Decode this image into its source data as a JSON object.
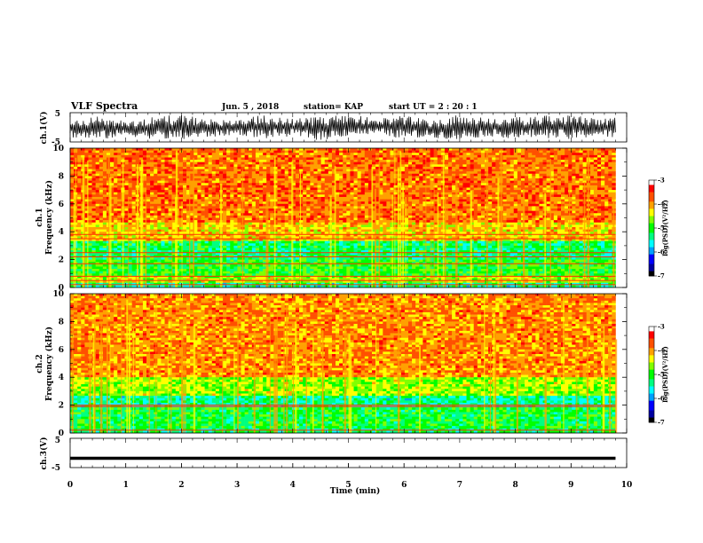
{
  "header": {
    "title": "VLF Spectra",
    "date": "Jun. 5 , 2018",
    "station": "station= KAP",
    "start": "start UT = 2 : 20 : 1"
  },
  "colors": {
    "colormap": [
      "#000000",
      "#0000a0",
      "#0000ff",
      "#00a0ff",
      "#00ffff",
      "#00ff80",
      "#00ff00",
      "#80ff00",
      "#ffff00",
      "#ffa000",
      "#ff5000",
      "#ff0000",
      "#ff8080",
      "#ffffff"
    ]
  },
  "chart_data": [
    {
      "type": "line",
      "name": "ch1-waveform",
      "ylabel": "ch.1(V)",
      "ylim": [
        -5,
        5
      ],
      "yticks": [
        "5",
        "-5"
      ],
      "xlim": [
        0,
        10
      ],
      "x": [
        0.0,
        0.5,
        1.0,
        1.5,
        2.0,
        2.5,
        3.0,
        3.5,
        4.0,
        4.5,
        5.0,
        5.5,
        6.0,
        6.5,
        7.0,
        7.5,
        8.0,
        8.5,
        9.0,
        9.5,
        9.8
      ],
      "y_low": [
        -3.5,
        -4.5,
        -3,
        -4,
        -4.5,
        -3.5,
        -2.5,
        -4,
        -3,
        -4.5,
        -3,
        -2.5,
        -4,
        -3.5,
        -4.5,
        -3,
        -4,
        -3.5,
        -4.5,
        -3,
        -4
      ],
      "y_high": [
        3,
        4,
        2.5,
        3.5,
        4.5,
        3,
        2.5,
        4.5,
        3,
        3.5,
        4.5,
        3,
        4,
        2.5,
        4.5,
        3,
        3.5,
        4,
        4.5,
        3,
        4
      ]
    },
    {
      "type": "heatmap",
      "name": "ch1-spectrogram",
      "ylabel_top": "ch.1",
      "ylabel": "Frequency (kHz)",
      "ylim": [
        0,
        10
      ],
      "yticks": [
        "0",
        "2",
        "4",
        "6",
        "8",
        "10"
      ],
      "xlim": [
        0,
        9.8
      ],
      "colorbar": {
        "label": "log(PSD)(V²/Hz)",
        "range": [
          -7,
          -3
        ],
        "ticks": [
          "-3",
          "-4",
          "-5",
          "-6",
          "-7"
        ]
      },
      "bands": [
        {
          "f0": 0,
          "f1": 0.3,
          "level": -5.4
        },
        {
          "f0": 0.3,
          "f1": 0.9,
          "level": -4.5
        },
        {
          "f0": 0.9,
          "f1": 2.0,
          "level": -5.0
        },
        {
          "f0": 2.0,
          "f1": 3.4,
          "level": -5.2
        },
        {
          "f0": 3.4,
          "f1": 4.6,
          "level": -4.2
        },
        {
          "f0": 4.6,
          "f1": 10,
          "level": -3.8
        }
      ],
      "lines_khz": [
        0.2,
        0.5,
        0.8,
        1.7,
        2.2,
        2.5,
        3.5,
        3.8
      ]
    },
    {
      "type": "heatmap",
      "name": "ch2-spectrogram",
      "ylabel_top": "ch.2",
      "ylabel": "Frequency (kHz)",
      "ylim": [
        0,
        10
      ],
      "yticks": [
        "0",
        "2",
        "4",
        "6",
        "8",
        "10"
      ],
      "xlim": [
        0,
        9.8
      ],
      "colorbar": {
        "label": "log(PSD)(V²/Hz)",
        "range": [
          -7,
          -3
        ],
        "ticks": [
          "-3",
          "-4",
          "-5",
          "-6",
          "-7"
        ]
      },
      "bands": [
        {
          "f0": 0,
          "f1": 0.4,
          "level": -5.3
        },
        {
          "f0": 0.4,
          "f1": 1.8,
          "level": -5.1
        },
        {
          "f0": 1.8,
          "f1": 2.6,
          "level": -5.4
        },
        {
          "f0": 2.6,
          "f1": 4.0,
          "level": -4.6
        },
        {
          "f0": 4.0,
          "f1": 10,
          "level": -3.9
        }
      ],
      "lines_khz": [
        0.2,
        1.9,
        2.0
      ]
    },
    {
      "type": "line",
      "name": "ch3-waveform",
      "ylabel": "ch.3(V)",
      "ylim": [
        -5,
        5
      ],
      "yticks": [
        "5",
        "-5"
      ],
      "xlim": [
        0,
        10
      ],
      "x": [
        0.0,
        9.8
      ],
      "y": [
        -1.8,
        -1.8
      ],
      "xlabel": "Time (min)",
      "xticks": [
        "0",
        "1",
        "2",
        "3",
        "4",
        "5",
        "6",
        "7",
        "8",
        "9",
        "10"
      ]
    }
  ]
}
